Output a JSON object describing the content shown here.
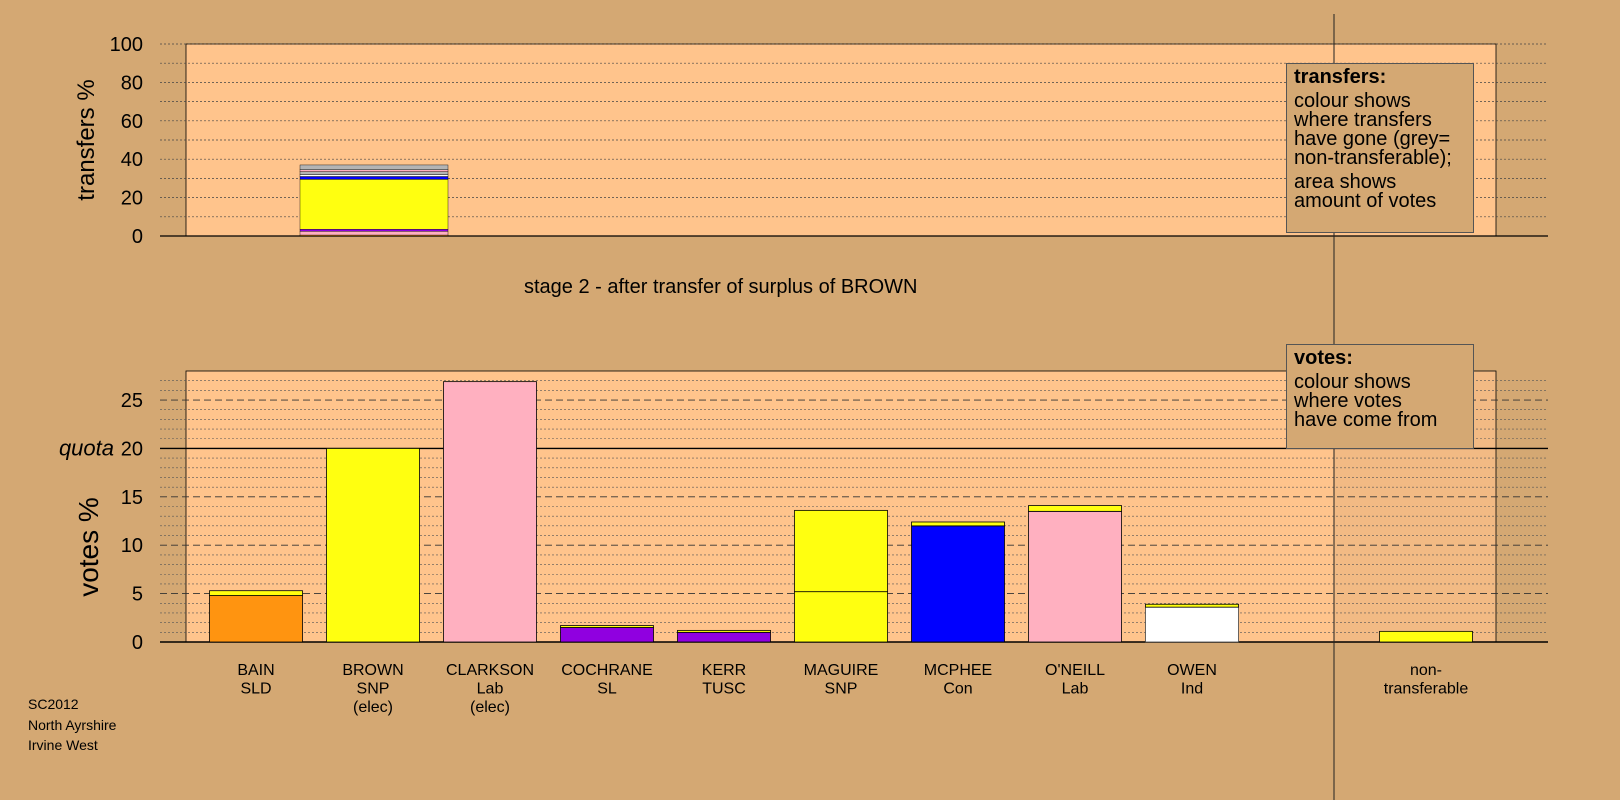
{
  "stage_title": "stage 2 - after transfer of surplus of BROWN",
  "footer": [
    "SC2012",
    "North Ayrshire",
    "Irvine West"
  ],
  "legend_transfers": {
    "title": "transfers:",
    "lines1": [
      "colour shows",
      "where transfers",
      "have gone (grey=",
      "non-transferable);"
    ],
    "lines2": [
      "area shows",
      "amount of votes"
    ]
  },
  "legend_votes": {
    "title": "votes:",
    "lines": [
      "colour shows",
      "where votes",
      "have come from"
    ]
  },
  "colors": {
    "background": "#d4a873",
    "plot_bg": "#ffc48c",
    "SLD": "#ff9410",
    "SNP": "#ffff10",
    "Lab": "#ffb0c0",
    "SL": "#9000e0",
    "TUSC": "#9000e0",
    "Con": "#0000ff",
    "Ind": "#ffffff",
    "Ind_border": "#4a6010",
    "nontransferable": "#b4b4b4"
  },
  "chart_data": [
    {
      "type": "bar",
      "stacked": true,
      "ylabel": "transfers %",
      "ylim": [
        0,
        100
      ],
      "yticks": [
        0,
        20,
        40,
        60,
        80,
        100
      ],
      "bar": {
        "segments": [
          {
            "name": "SLD",
            "value": 0.5,
            "color": "#ff9410"
          },
          {
            "name": "Lab",
            "value": 2.0,
            "color": "#ffb0c0"
          },
          {
            "name": "SL",
            "value": 1.0,
            "color": "#9000e0"
          },
          {
            "name": "SNP",
            "value": 26.0,
            "color": "#ffff10"
          },
          {
            "name": "Con",
            "value": 1.5,
            "color": "#0000ff"
          },
          {
            "name": "Ind",
            "value": 1.0,
            "color": "#ffffff"
          },
          {
            "name": "non-transferable",
            "value": 1.5,
            "color": "#b4b4b4"
          },
          {
            "name": "Lab",
            "value": 1.0,
            "color": "#ffb0c0"
          },
          {
            "name": "non-transferable",
            "value": 2.5,
            "color": "#b4b4b4"
          }
        ]
      }
    },
    {
      "type": "bar",
      "stacked": true,
      "ylabel": "votes %",
      "ylim": [
        0,
        28
      ],
      "yticks": [
        0,
        5,
        10,
        15,
        20,
        25
      ],
      "quota": 20,
      "quota_label": "quota",
      "categories": [
        {
          "name": "BAIN",
          "party": "SLD",
          "note": "",
          "segments": [
            {
              "value": 4.8,
              "color": "#ff9410"
            },
            {
              "value": 0.5,
              "color": "#ffff10"
            }
          ]
        },
        {
          "name": "BROWN",
          "party": "SNP",
          "note": "(elec)",
          "segments": [
            {
              "value": 20.0,
              "color": "#ffff10"
            }
          ]
        },
        {
          "name": "CLARKSON",
          "party": "Lab",
          "note": "(elec)",
          "segments": [
            {
              "value": 26.9,
              "color": "#ffb0c0"
            }
          ]
        },
        {
          "name": "COCHRANE",
          "party": "SL",
          "note": "",
          "segments": [
            {
              "value": 1.5,
              "color": "#9000e0"
            },
            {
              "value": 0.2,
              "color": "#ffff10"
            }
          ]
        },
        {
          "name": "KERR",
          "party": "TUSC",
          "note": "",
          "segments": [
            {
              "value": 1.0,
              "color": "#9000e0"
            },
            {
              "value": 0.2,
              "color": "#ffff10"
            }
          ]
        },
        {
          "name": "MAGUIRE",
          "party": "SNP",
          "note": "",
          "segments": [
            {
              "value": 5.2,
              "color": "#ffff10"
            },
            {
              "value": 8.4,
              "color": "#ffff10"
            }
          ]
        },
        {
          "name": "MCPHEE",
          "party": "Con",
          "note": "",
          "segments": [
            {
              "value": 12.0,
              "color": "#0000ff"
            },
            {
              "value": 0.4,
              "color": "#ffff10"
            }
          ]
        },
        {
          "name": "O'NEILL",
          "party": "Lab",
          "note": "",
          "segments": [
            {
              "value": 13.5,
              "color": "#ffb0c0"
            },
            {
              "value": 0.6,
              "color": "#ffff10"
            }
          ]
        },
        {
          "name": "OWEN",
          "party": "Ind",
          "note": "",
          "segments": [
            {
              "value": 3.6,
              "color": "#ffffff"
            },
            {
              "value": 0.3,
              "color": "#ffff10"
            }
          ]
        },
        {
          "name": "non-",
          "party": "transferable",
          "note": "",
          "segments": [
            {
              "value": 1.1,
              "color": "#ffff10"
            }
          ]
        }
      ]
    }
  ]
}
